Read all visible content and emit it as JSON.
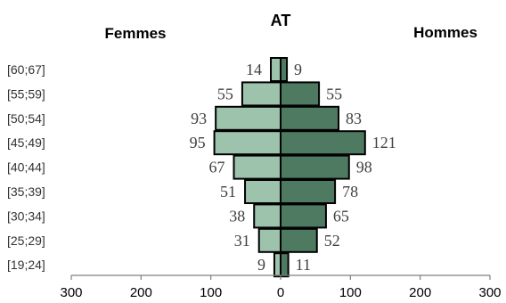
{
  "chart_data": {
    "type": "bar",
    "title": "AT",
    "left_label": "Femmes",
    "right_label": "Hommes",
    "categories": [
      "[60;67]",
      "[55;59]",
      "[50;54]",
      "[45;49]",
      "[40;44]",
      "[35;39]",
      "[30;34]",
      "[25;29]",
      "[19;24]"
    ],
    "series": [
      {
        "name": "Femmes",
        "values": [
          14,
          55,
          93,
          95,
          67,
          51,
          38,
          31,
          9
        ],
        "color": "#9dc3ad"
      },
      {
        "name": "Hommes",
        "values": [
          9,
          55,
          83,
          121,
          98,
          78,
          65,
          52,
          11
        ],
        "color": "#4f7a62"
      }
    ],
    "x_ticks": [
      "300",
      "200",
      "100",
      "0",
      "100",
      "200",
      "300"
    ],
    "xlim": [
      -300,
      300
    ],
    "grid": false,
    "legend": "none"
  }
}
